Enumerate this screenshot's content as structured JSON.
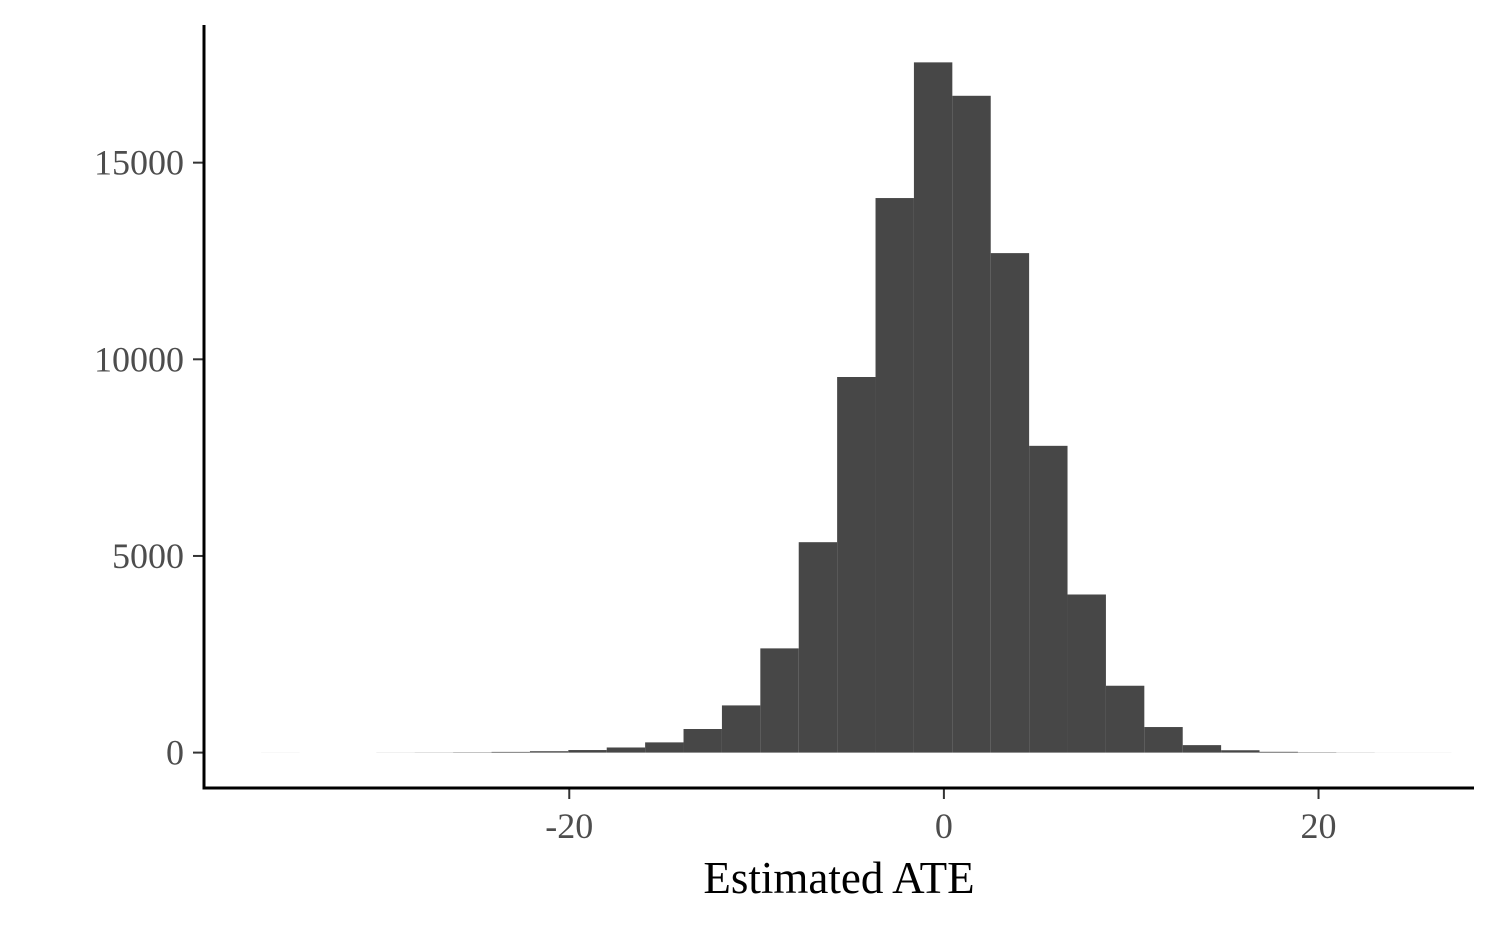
{
  "chart_data": {
    "type": "bar",
    "subtype": "histogram",
    "title": "",
    "xlabel": "Estimated ATE",
    "ylabel": "",
    "bin_width": 2.05,
    "bins": [
      {
        "x0": -36.45,
        "x1": -34.4,
        "count": 1
      },
      {
        "x0": -34.4,
        "x1": -32.35,
        "count": 0
      },
      {
        "x0": -32.35,
        "x1": -30.3,
        "count": 0
      },
      {
        "x0": -30.3,
        "x1": -28.25,
        "count": 2
      },
      {
        "x0": -28.25,
        "x1": -26.2,
        "count": 4
      },
      {
        "x0": -26.2,
        "x1": -24.15,
        "count": 8
      },
      {
        "x0": -24.15,
        "x1": -22.1,
        "count": 18
      },
      {
        "x0": -22.1,
        "x1": -20.05,
        "count": 35
      },
      {
        "x0": -20.05,
        "x1": -18.0,
        "count": 65
      },
      {
        "x0": -18.0,
        "x1": -15.95,
        "count": 130
      },
      {
        "x0": -15.95,
        "x1": -13.9,
        "count": 260
      },
      {
        "x0": -13.9,
        "x1": -11.85,
        "count": 600
      },
      {
        "x0": -11.85,
        "x1": -9.8,
        "count": 1200
      },
      {
        "x0": -9.8,
        "x1": -7.75,
        "count": 2650
      },
      {
        "x0": -7.75,
        "x1": -5.7,
        "count": 5350
      },
      {
        "x0": -5.7,
        "x1": -3.65,
        "count": 9550
      },
      {
        "x0": -3.65,
        "x1": -1.6,
        "count": 14100
      },
      {
        "x0": -1.6,
        "x1": 0.45,
        "count": 17550
      },
      {
        "x0": 0.45,
        "x1": 2.5,
        "count": 16700
      },
      {
        "x0": 2.5,
        "x1": 4.55,
        "count": 12700
      },
      {
        "x0": 4.55,
        "x1": 6.6,
        "count": 7800
      },
      {
        "x0": 6.6,
        "x1": 8.65,
        "count": 4020
      },
      {
        "x0": 8.65,
        "x1": 10.7,
        "count": 1700
      },
      {
        "x0": 10.7,
        "x1": 12.75,
        "count": 650
      },
      {
        "x0": 12.75,
        "x1": 14.8,
        "count": 190
      },
      {
        "x0": 14.8,
        "x1": 16.85,
        "count": 60
      },
      {
        "x0": 16.85,
        "x1": 18.9,
        "count": 20
      },
      {
        "x0": 18.9,
        "x1": 20.95,
        "count": 8
      },
      {
        "x0": 20.95,
        "x1": 23.0,
        "count": 3
      },
      {
        "x0": 23.0,
        "x1": 25.05,
        "count": 1
      },
      {
        "x0": 25.05,
        "x1": 27.1,
        "count": 1
      }
    ],
    "x_ticks": [
      -20,
      0,
      20
    ],
    "x_tick_labels": [
      "-20",
      "0",
      "20"
    ],
    "y_ticks": [
      0,
      5000,
      10000,
      15000
    ],
    "y_tick_labels": [
      "0",
      "5000",
      "10000",
      "15000"
    ],
    "xlim": [
      -39.5,
      28.3
    ],
    "ylim": [
      -900,
      18500
    ],
    "grid": false,
    "legend": "none",
    "colors": {
      "bar_fill": "#474747",
      "axis_line": "#000000",
      "tick_label": "#4d4d4d",
      "axis_title": "#000000",
      "background": "#ffffff"
    }
  }
}
